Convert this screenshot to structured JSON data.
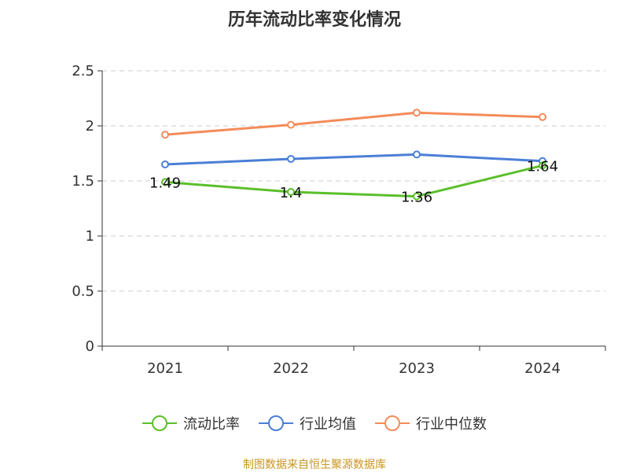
{
  "chart_data": {
    "type": "line",
    "title": "历年流动比率变化情况",
    "categories": [
      "2021",
      "2022",
      "2023",
      "2024"
    ],
    "ylim": [
      0,
      2.5
    ],
    "yticks": [
      "0",
      "0.5",
      "1",
      "1.5",
      "2",
      "2.5"
    ],
    "grid": true,
    "legend_position": "bottom",
    "series": [
      {
        "name": "流动比率",
        "color": "#5bbf2a",
        "values": [
          1.49,
          1.4,
          1.36,
          1.64
        ],
        "labels": [
          "1.49",
          "1.4",
          "1.36",
          "1.64"
        ]
      },
      {
        "name": "行业均值",
        "color": "#4b7fd6",
        "values": [
          1.65,
          1.7,
          1.74,
          1.68
        ]
      },
      {
        "name": "行业中位数",
        "color": "#f48b5a",
        "values": [
          1.92,
          2.01,
          2.12,
          2.08
        ]
      }
    ]
  },
  "source": "制图数据来自恒生聚源数据库"
}
